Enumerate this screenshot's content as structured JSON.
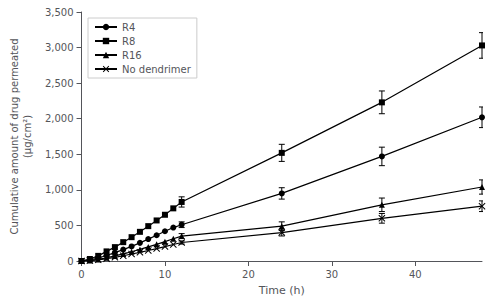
{
  "chart_data": {
    "type": "line",
    "xlabel": "Time (h)",
    "ylabel": "Cumulative amount of drug permeated\n(μg/cm²)",
    "x": [
      0,
      1,
      2,
      3,
      4,
      5,
      6,
      7,
      8,
      9,
      10,
      11,
      12,
      24,
      36,
      48
    ],
    "xlim": [
      0,
      48
    ],
    "xticks": [
      0,
      10,
      20,
      30,
      40
    ],
    "ylim": [
      0,
      3500
    ],
    "yticks": [
      0,
      500,
      1000,
      1500,
      2000,
      2500,
      3000,
      3500
    ],
    "grid": false,
    "legend": "upper left",
    "series": [
      {
        "name": "R4",
        "color": "#000000",
        "marker": "circle",
        "line_style": "solid",
        "values": [
          0,
          18,
          42,
          78,
          118,
          160,
          205,
          255,
          308,
          362,
          418,
          470,
          510,
          950,
          1470,
          2020
        ],
        "errors": [
          0,
          0,
          0,
          0,
          0,
          0,
          0,
          0,
          0,
          0,
          0,
          0,
          40,
          80,
          130,
          145
        ]
      },
      {
        "name": "R8",
        "color": "#000000",
        "marker": "square",
        "line_style": "solid",
        "values": [
          0,
          28,
          72,
          135,
          195,
          265,
          335,
          410,
          490,
          570,
          650,
          740,
          830,
          1520,
          2230,
          3030
        ],
        "errors": [
          0,
          0,
          0,
          0,
          0,
          0,
          0,
          0,
          0,
          0,
          0,
          0,
          72,
          120,
          160,
          180
        ]
      },
      {
        "name": "R16",
        "color": "#000000",
        "marker": "triangle",
        "line_style": "solid",
        "values": [
          0,
          8,
          22,
          45,
          72,
          100,
          130,
          163,
          198,
          234,
          272,
          312,
          350,
          490,
          790,
          1040
        ],
        "errors": [
          0,
          0,
          0,
          0,
          0,
          0,
          0,
          0,
          0,
          0,
          0,
          0,
          35,
          60,
          95,
          100
        ]
      },
      {
        "name": "No dendrimer",
        "color": "#000000",
        "marker": "x",
        "line_style": "solid",
        "values": [
          0,
          6,
          16,
          32,
          52,
          74,
          98,
          122,
          148,
          175,
          203,
          232,
          260,
          400,
          600,
          770
        ],
        "errors": [
          0,
          0,
          0,
          0,
          0,
          0,
          0,
          0,
          0,
          0,
          0,
          0,
          22,
          48,
          68,
          75
        ]
      }
    ]
  }
}
